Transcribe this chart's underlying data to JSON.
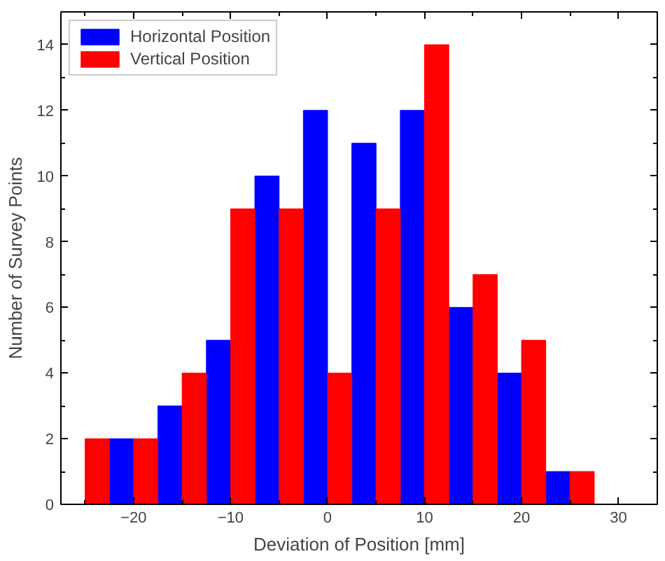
{
  "chart_data": {
    "type": "histogram",
    "xlabel": "Deviation of Position [mm]",
    "ylabel": "Number of Survey Points",
    "bins": [
      -25,
      -20,
      -15,
      -10,
      -5,
      0,
      5,
      10,
      15,
      20,
      25,
      30
    ],
    "series": [
      {
        "name": "Horizontal Position",
        "color": "#0000ff",
        "values": [
          2,
          3,
          5,
          10,
          12,
          11,
          12,
          6,
          4,
          1,
          0
        ]
      },
      {
        "name": "Vertical Position",
        "color": "#ff0000",
        "values": [
          2,
          2,
          4,
          9,
          9,
          4,
          9,
          14,
          7,
          5,
          1
        ]
      }
    ],
    "xlim": [
      -27.5,
      34
    ],
    "xticks": [
      -20,
      -10,
      0,
      10,
      20,
      30
    ],
    "ylim": [
      0,
      15
    ],
    "yticks": [
      0,
      2,
      4,
      6,
      8,
      10,
      12,
      14
    ],
    "grid": false,
    "legend": "top left"
  }
}
